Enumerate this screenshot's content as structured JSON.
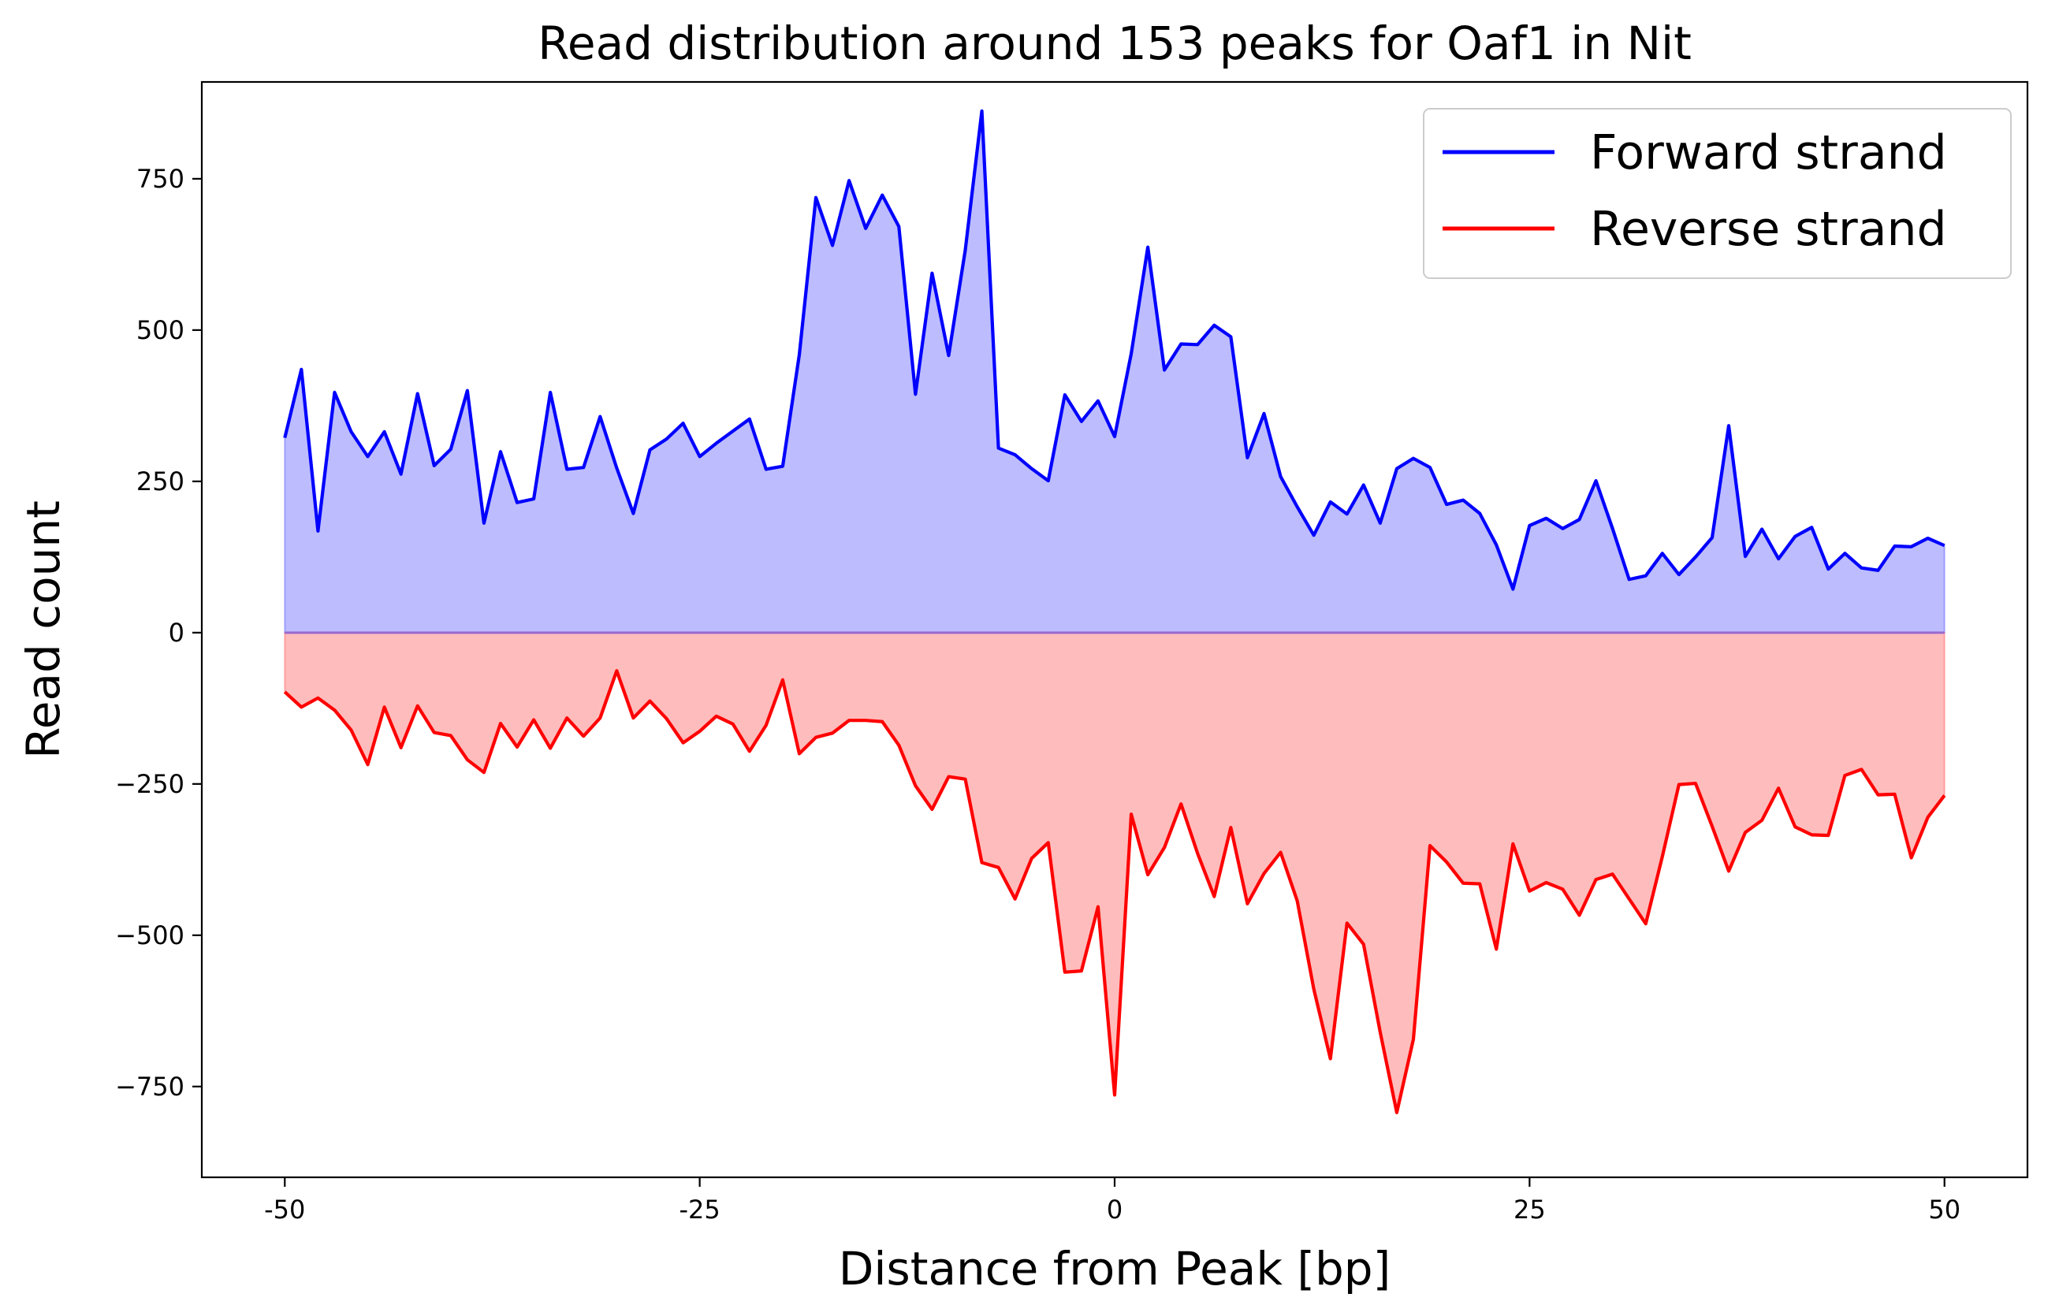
{
  "chart_data": {
    "type": "area",
    "title": "Read distribution around 153 peaks for Oaf1 in Nit",
    "xlabel": "Distance from Peak [bp]",
    "ylabel": "Read count",
    "xlim": [
      -55,
      55
    ],
    "ylim": [
      -900,
      910
    ],
    "x_ticks": [
      -50,
      -25,
      0,
      25,
      50
    ],
    "x_tick_labels": [
      "-50",
      "-25",
      "0",
      "25",
      "50"
    ],
    "y_ticks": [
      750,
      500,
      250,
      0,
      -250,
      -500,
      -750
    ],
    "y_tick_labels": [
      "750",
      "500",
      "250",
      "0",
      "−250",
      "−500",
      "−750"
    ],
    "grid": false,
    "legend_position": "top-right",
    "x": [
      -50,
      -49,
      -48,
      -47,
      -46,
      -45,
      -44,
      -43,
      -42,
      -41,
      -40,
      -39,
      -38,
      -37,
      -36,
      -35,
      -34,
      -33,
      -32,
      -31,
      -30,
      -29,
      -28,
      -27,
      -26,
      -25,
      -24,
      -23,
      -22,
      -21,
      -20,
      -19,
      -18,
      -17,
      -16,
      -15,
      -14,
      -13,
      -12,
      -11,
      -10,
      -9,
      -8,
      -7,
      -6,
      -5,
      -4,
      -3,
      -2,
      -1,
      0,
      1,
      2,
      3,
      4,
      5,
      6,
      7,
      8,
      9,
      10,
      11,
      12,
      13,
      14,
      15,
      16,
      17,
      18,
      19,
      20,
      21,
      22,
      23,
      24,
      25,
      26,
      27,
      28,
      29,
      30,
      31,
      32,
      33,
      34,
      35,
      36,
      37,
      38,
      39,
      40,
      41,
      42,
      43,
      44,
      45,
      46,
      47,
      48,
      49,
      50
    ],
    "series": [
      {
        "name": "Forward strand",
        "color": "#0000ff",
        "fill_color": "#bcbcff",
        "values": [
          322,
          435,
          168,
          397,
          332,
          291,
          332,
          262,
          395,
          276,
          303,
          400,
          181,
          299,
          215,
          221,
          397,
          270,
          273,
          357,
          272,
          197,
          302,
          320,
          346,
          291,
          313,
          333,
          353,
          270,
          275,
          459,
          719,
          640,
          747,
          668,
          723,
          671,
          394,
          594,
          458,
          632,
          862,
          305,
          294,
          271,
          251,
          393,
          349,
          383,
          324,
          461,
          637,
          434,
          477,
          476,
          508,
          489,
          289,
          362,
          258,
          208,
          161,
          216,
          196,
          244,
          181,
          271,
          288,
          273,
          212,
          219,
          197,
          145,
          72,
          177,
          189,
          172,
          187,
          251,
          172,
          88,
          94,
          131,
          96,
          125,
          157,
          342,
          126,
          171,
          122,
          159,
          174,
          105,
          131,
          107,
          103,
          143,
          142,
          156,
          144
        ]
      },
      {
        "name": "Reverse strand",
        "color": "#ff0000",
        "fill_color": "#ffbcbc",
        "values": [
          -98,
          -123,
          -108,
          -128,
          -161,
          -218,
          -123,
          -190,
          -121,
          -165,
          -170,
          -210,
          -231,
          -150,
          -189,
          -144,
          -191,
          -141,
          -171,
          -141,
          -63,
          -141,
          -113,
          -142,
          -182,
          -163,
          -138,
          -151,
          -196,
          -153,
          -78,
          -200,
          -173,
          -166,
          -145,
          -145,
          -147,
          -186,
          -253,
          -292,
          -238,
          -242,
          -380,
          -388,
          -440,
          -373,
          -347,
          -561,
          -559,
          -453,
          -764,
          -300,
          -400,
          -355,
          -283,
          -365,
          -436,
          -322,
          -448,
          -398,
          -363,
          -443,
          -589,
          -704,
          -480,
          -515,
          -660,
          -793,
          -672,
          -352,
          -379,
          -414,
          -415,
          -523,
          -349,
          -427,
          -413,
          -424,
          -467,
          -408,
          -399,
          -440,
          -481,
          -370,
          -251,
          -249,
          -320,
          -394,
          -330,
          -310,
          -257,
          -321,
          -334,
          -335,
          -236,
          -226,
          -268,
          -267,
          -372,
          -305,
          -269
        ]
      }
    ]
  }
}
